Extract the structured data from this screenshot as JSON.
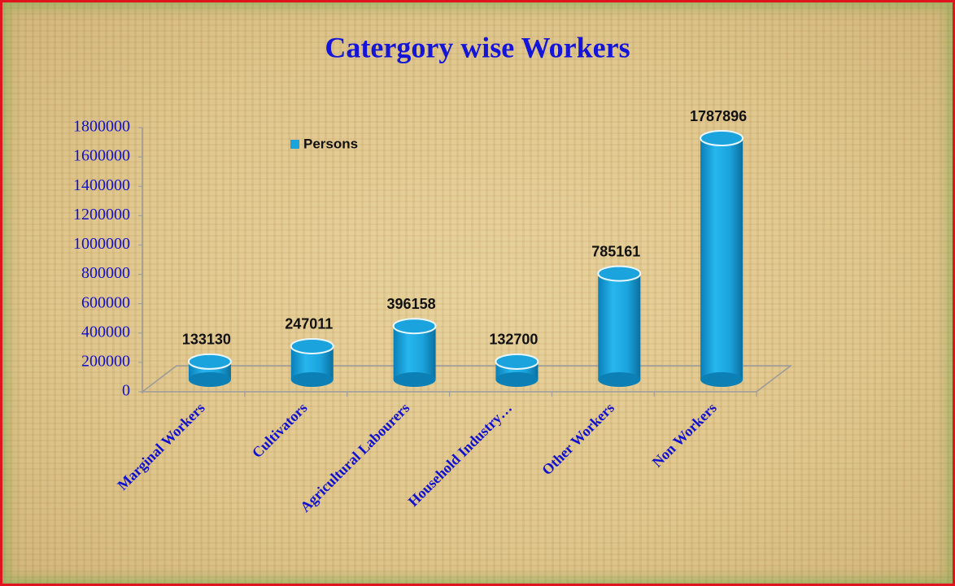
{
  "chart_data": {
    "type": "bar",
    "title": "Catergory wise Workers",
    "categories": [
      "Marginal Workers",
      "Cultivators",
      "Agricultural Labourers",
      "Household Industry…",
      "Other Workers",
      "Non Workers"
    ],
    "series": [
      {
        "name": "Persons",
        "color": "#1aa3dc",
        "values": [
          133130,
          247011,
          396158,
          132700,
          785161,
          1787896
        ]
      }
    ],
    "ylim": [
      0,
      1800000
    ],
    "yticks": [
      0,
      200000,
      400000,
      600000,
      800000,
      1000000,
      1200000,
      1400000,
      1600000,
      1800000
    ],
    "legend": "top-left"
  }
}
